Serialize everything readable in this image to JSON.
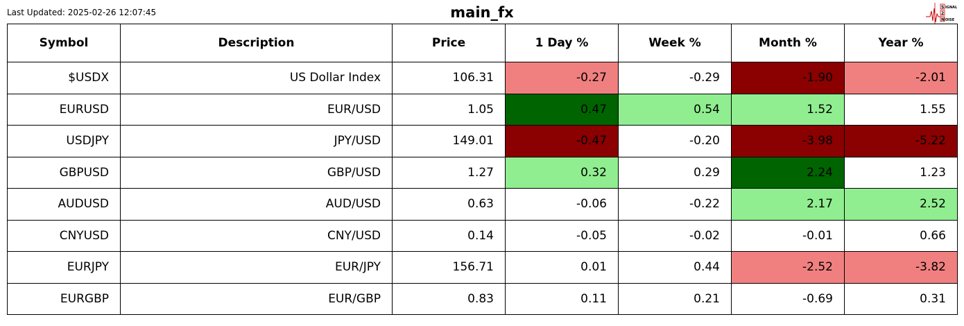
{
  "header": {
    "updated": "Last Updated: 2025-02-26 12:07:45",
    "title": "main_fx",
    "logo": [
      "S",
      "IGNAL",
      "2",
      "N",
      "OISE"
    ]
  },
  "table": {
    "columns": [
      "Symbol",
      "Description",
      "Price",
      "1 Day %",
      "Week %",
      "Month %",
      "Year %"
    ],
    "rows": [
      [
        "$USDX",
        "US Dollar Index",
        "106.31",
        "-0.27",
        "-0.29",
        "-1.90",
        "-2.01"
      ],
      [
        "EURUSD",
        "EUR/USD",
        "1.05",
        "0.47",
        "0.54",
        "1.52",
        "1.55"
      ],
      [
        "USDJPY",
        "JPY/USD",
        "149.01",
        "-0.47",
        "-0.20",
        "-3.98",
        "-5.22"
      ],
      [
        "GBPUSD",
        "GBP/USD",
        "1.27",
        "0.32",
        "0.29",
        "2.24",
        "1.23"
      ],
      [
        "AUDUSD",
        "AUD/USD",
        "0.63",
        "-0.06",
        "-0.22",
        "2.17",
        "2.52"
      ],
      [
        "CNYUSD",
        "CNY/USD",
        "0.14",
        "-0.05",
        "-0.02",
        "-0.01",
        "0.66"
      ],
      [
        "EURJPY",
        "EUR/JPY",
        "156.71",
        "0.01",
        "0.44",
        "-2.52",
        "-3.82"
      ],
      [
        "EURGBP",
        "EUR/GBP",
        "0.83",
        "0.11",
        "0.21",
        "-0.69",
        "0.31"
      ]
    ],
    "fills": [
      [
        "#ffffff",
        "#ffffff",
        "#ffffff",
        "#f08080",
        "#ffffff",
        "#8b0000",
        "#f08080"
      ],
      [
        "#ffffff",
        "#ffffff",
        "#ffffff",
        "#006400",
        "#90ee90",
        "#90ee90",
        "#ffffff"
      ],
      [
        "#ffffff",
        "#ffffff",
        "#ffffff",
        "#8b0000",
        "#ffffff",
        "#8b0000",
        "#8b0000"
      ],
      [
        "#ffffff",
        "#ffffff",
        "#ffffff",
        "#90ee90",
        "#ffffff",
        "#006400",
        "#ffffff"
      ],
      [
        "#ffffff",
        "#ffffff",
        "#ffffff",
        "#ffffff",
        "#ffffff",
        "#90ee90",
        "#90ee90"
      ],
      [
        "#ffffff",
        "#ffffff",
        "#ffffff",
        "#ffffff",
        "#ffffff",
        "#ffffff",
        "#ffffff"
      ],
      [
        "#ffffff",
        "#ffffff",
        "#ffffff",
        "#ffffff",
        "#ffffff",
        "#f08080",
        "#f08080"
      ],
      [
        "#ffffff",
        "#ffffff",
        "#ffffff",
        "#ffffff",
        "#ffffff",
        "#ffffff",
        "#ffffff"
      ]
    ]
  }
}
